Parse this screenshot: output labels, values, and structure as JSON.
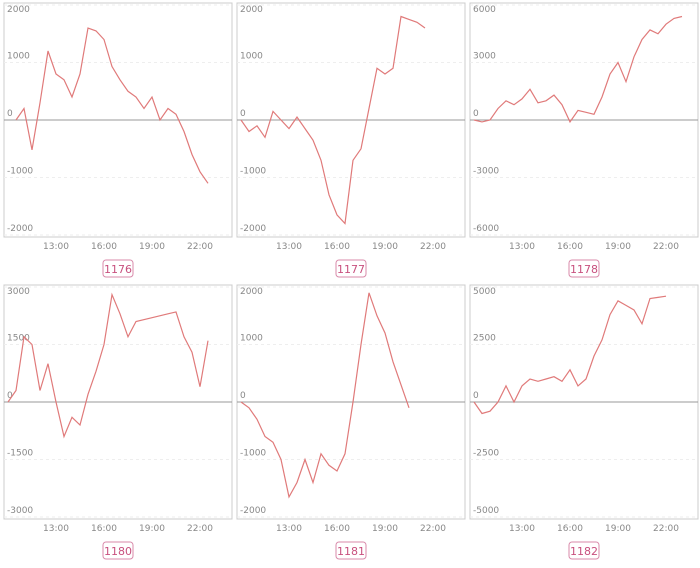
{
  "chart_data": [
    {
      "type": "line",
      "title": "1176",
      "color": "#e07a7a",
      "x": [
        10.5,
        11,
        11.5,
        12,
        12.5,
        13,
        13.5,
        14,
        14.5,
        15,
        15.5,
        16,
        16.5,
        17,
        17.5,
        18,
        18.5,
        19,
        19.5,
        20,
        20.5,
        21,
        21.5,
        22,
        22.5
      ],
      "values": [
        0,
        200,
        -520,
        300,
        1200,
        800,
        700,
        400,
        800,
        1600,
        1550,
        1400,
        930,
        700,
        500,
        400,
        200,
        400,
        0,
        200,
        100,
        -200,
        -600,
        -900,
        -1100
      ],
      "xlim": [
        9.75,
        24
      ],
      "xticks": [
        {
          "value": 13,
          "label": "13:00"
        },
        {
          "value": 16,
          "label": "16:00"
        },
        {
          "value": 19,
          "label": "19:00"
        },
        {
          "value": 22,
          "label": "22:00"
        }
      ],
      "ylim": [
        -2000,
        2000
      ],
      "yticks": [
        -2000,
        -1000,
        0,
        1000,
        2000
      ]
    },
    {
      "type": "line",
      "title": "1177",
      "color": "#e07a7a",
      "x": [
        10,
        10.5,
        11,
        11.5,
        12,
        12.5,
        13,
        13.5,
        14,
        14.5,
        15,
        15.5,
        16,
        16.5,
        17,
        17.5,
        18,
        18.5,
        19,
        19.5,
        20,
        20.5,
        21,
        21.5
      ],
      "values": [
        0,
        -200,
        -100,
        -300,
        150,
        0,
        -150,
        50,
        -150,
        -350,
        -700,
        -1300,
        -1650,
        -1800,
        -700,
        -500,
        200,
        900,
        800,
        900,
        1800,
        1750,
        1700,
        1600
      ],
      "xlim": [
        9.75,
        24
      ],
      "xticks": [
        {
          "value": 13,
          "label": "13:00"
        },
        {
          "value": 16,
          "label": "16:00"
        },
        {
          "value": 19,
          "label": "19:00"
        },
        {
          "value": 22,
          "label": "22:00"
        }
      ],
      "ylim": [
        -2000,
        2000
      ],
      "yticks": [
        -2000,
        -1000,
        0,
        1000,
        2000
      ]
    },
    {
      "type": "line",
      "title": "1178",
      "color": "#e07a7a",
      "x": [
        10,
        10.5,
        11,
        11.5,
        12,
        12.5,
        13,
        13.5,
        14,
        14.5,
        15,
        15.5,
        16,
        16.5,
        17,
        17.5,
        18,
        18.5,
        19,
        19.5,
        20,
        20.5,
        21,
        21.5,
        22,
        22.5,
        23
      ],
      "values": [
        0,
        -100,
        0,
        600,
        1000,
        800,
        1100,
        1600,
        900,
        1000,
        1300,
        800,
        -100,
        500,
        400,
        300,
        1200,
        2400,
        3000,
        2000,
        3300,
        4200,
        4700,
        4500,
        5000,
        5300,
        5400
      ],
      "xlim": [
        9.75,
        24
      ],
      "xticks": [
        {
          "value": 13,
          "label": "13:00"
        },
        {
          "value": 16,
          "label": "16:00"
        },
        {
          "value": 19,
          "label": "19:00"
        },
        {
          "value": 22,
          "label": "22:00"
        }
      ],
      "ylim": [
        -6000,
        6000
      ],
      "yticks": [
        -6000,
        -3000,
        0,
        3000,
        6000
      ]
    },
    {
      "type": "line",
      "title": "1180",
      "color": "#e07a7a",
      "x": [
        10,
        10.5,
        11,
        11.5,
        12,
        12.5,
        13,
        13.5,
        14,
        14.5,
        15,
        15.5,
        16,
        16.5,
        17,
        17.5,
        18,
        19,
        20,
        20.5,
        21,
        21.5,
        22,
        22.5
      ],
      "values": [
        0,
        300,
        1700,
        1500,
        300,
        1000,
        0,
        -900,
        -400,
        -600,
        200,
        800,
        1500,
        2800,
        2300,
        1700,
        2100,
        2200,
        2300,
        2350,
        1700,
        1300,
        400,
        1600
      ],
      "xlim": [
        9.75,
        24
      ],
      "xticks": [
        {
          "value": 13,
          "label": "13:00"
        },
        {
          "value": 16,
          "label": "16:00"
        },
        {
          "value": 19,
          "label": "19:00"
        },
        {
          "value": 22,
          "label": "22:00"
        }
      ],
      "ylim": [
        -3000,
        3000
      ],
      "yticks": [
        -3000,
        -1500,
        0,
        1500,
        3000
      ]
    },
    {
      "type": "line",
      "title": "1181",
      "color": "#e07a7a",
      "x": [
        10,
        10.5,
        11,
        11.5,
        12,
        12.5,
        13,
        13.5,
        14,
        14.5,
        15,
        15.5,
        16,
        16.5,
        17,
        17.5,
        18,
        18.5,
        19,
        19.5,
        20,
        20.5
      ],
      "values": [
        0,
        -100,
        -300,
        -600,
        -700,
        -1000,
        -1650,
        -1400,
        -1000,
        -1400,
        -900,
        -1100,
        -1200,
        -900,
        0,
        1000,
        1900,
        1500,
        1200,
        700,
        300,
        -100
      ],
      "xlim": [
        9.75,
        24
      ],
      "xticks": [
        {
          "value": 13,
          "label": "13:00"
        },
        {
          "value": 16,
          "label": "16:00"
        },
        {
          "value": 19,
          "label": "19:00"
        },
        {
          "value": 22,
          "label": "22:00"
        }
      ],
      "ylim": [
        -2000,
        2000
      ],
      "yticks": [
        -2000,
        -1000,
        0,
        1000,
        2000
      ]
    },
    {
      "type": "line",
      "title": "1182",
      "color": "#e07a7a",
      "x": [
        10,
        10.5,
        11,
        11.5,
        12,
        12.5,
        13,
        13.5,
        14,
        14.5,
        15,
        15.5,
        16,
        16.5,
        17,
        17.5,
        18,
        18.5,
        19,
        19.5,
        20,
        20.5,
        21,
        21.5,
        22
      ],
      "values": [
        0,
        -500,
        -400,
        0,
        700,
        0,
        700,
        1000,
        900,
        1000,
        1100,
        900,
        1400,
        700,
        1000,
        2000,
        2700,
        3800,
        4400,
        4200,
        4000,
        3400,
        4500,
        4550,
        4600
      ],
      "xlim": [
        9.75,
        24
      ],
      "xticks": [
        {
          "value": 13,
          "label": "13:00"
        },
        {
          "value": 16,
          "label": "16:00"
        },
        {
          "value": 19,
          "label": "19:00"
        },
        {
          "value": 22,
          "label": "22:00"
        }
      ],
      "ylim": [
        -5000,
        5000
      ],
      "yticks": [
        -5000,
        -2500,
        0,
        2500,
        5000
      ]
    }
  ]
}
